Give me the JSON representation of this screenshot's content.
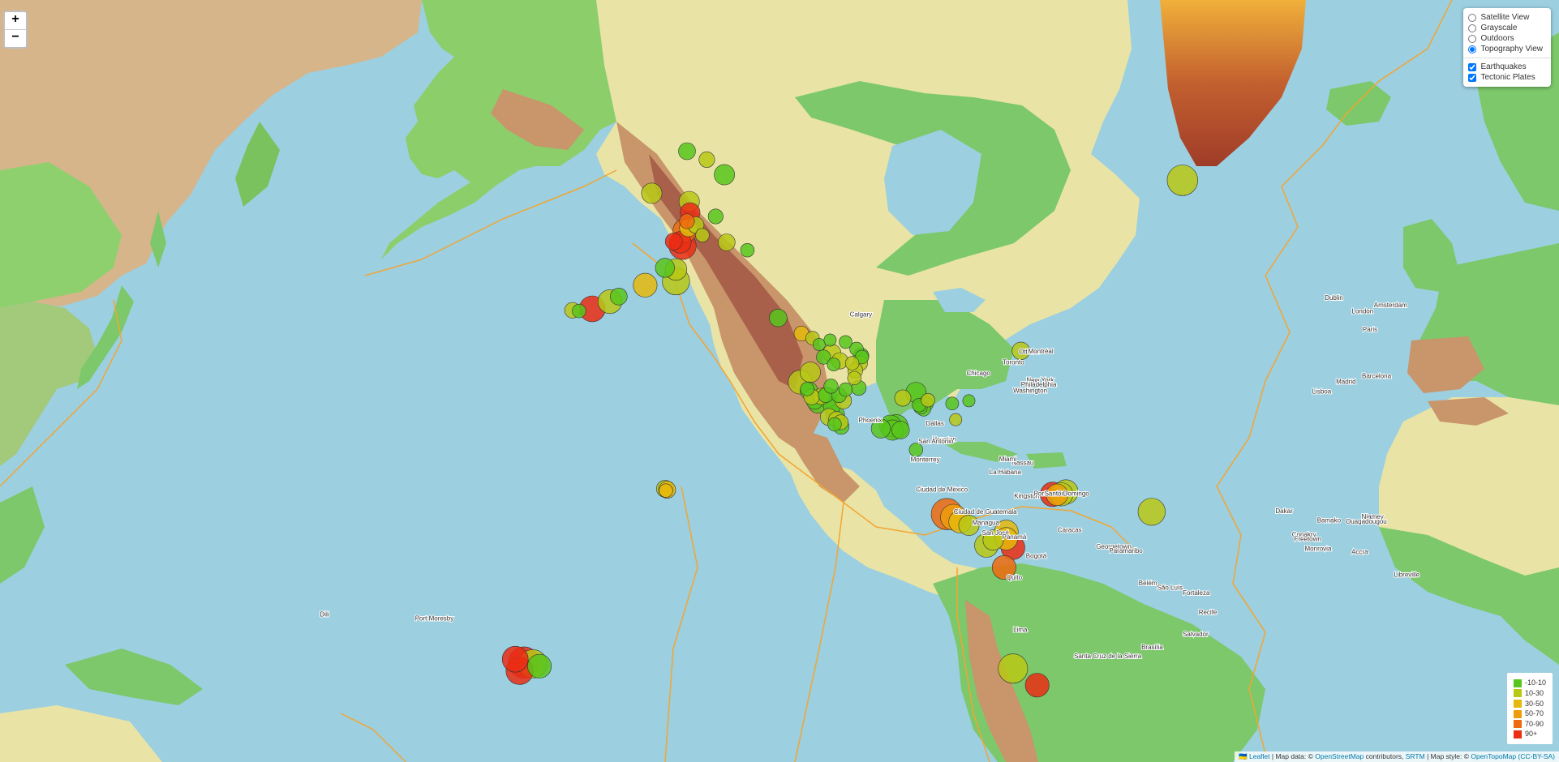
{
  "zoom": {
    "in_label": "+",
    "out_label": "−"
  },
  "layer_control": {
    "base_layers": [
      {
        "label": "Satellite View",
        "selected": false
      },
      {
        "label": "Grayscale",
        "selected": false
      },
      {
        "label": "Outdoors",
        "selected": false
      },
      {
        "label": "Topography View",
        "selected": true
      }
    ],
    "overlays": [
      {
        "label": "Earthquakes",
        "checked": true
      },
      {
        "label": "Tectonic Plates",
        "checked": true
      }
    ]
  },
  "legend": [
    {
      "label": "-10-10",
      "color": "#58c51c"
    },
    {
      "label": "10-30",
      "color": "#b9c815"
    },
    {
      "label": "30-50",
      "color": "#e5b80c"
    },
    {
      "label": "50-70",
      "color": "#ee9c0a"
    },
    {
      "label": "70-90",
      "color": "#ef6a0e"
    },
    {
      "label": "90+",
      "color": "#ea2d14"
    }
  ],
  "attribution": {
    "flag": "🇺🇦",
    "leaflet": "Leaflet",
    "sep1": " | Map data: © ",
    "osm": "OpenStreetMap",
    "sep2": " contributors, ",
    "srtm": "SRTM",
    "sep3": " | Map style: © ",
    "otm": "OpenTopoMap",
    "ccbysa": "(CC-BY-SA)"
  },
  "colors": {
    "ocean": "#9ccfe0",
    "lowland": "#7cc86a",
    "plain": "#e9e4a6",
    "highland": "#c9956b",
    "mountain": "#a8604a",
    "ice": "#b94b2c",
    "plate_boundary": "#f2a532"
  },
  "place_labels": [
    "Calgary",
    "Ottawa",
    "Montréal",
    "Toronto",
    "Chicago",
    "New York",
    "Philadelphia",
    "Washington",
    "Phoenix",
    "Dallas",
    "Houston",
    "San Antonio",
    "Monterrey",
    "Ciudad de México",
    "Ciudad de Guatemala",
    "Managua",
    "San José",
    "Panamá",
    "Bogotá",
    "Caracas",
    "Georgetown",
    "Paramaribo",
    "Kingston",
    "Port-au-Prince",
    "Santo Domingo",
    "Nassau",
    "La Habana",
    "Miami",
    "Quito",
    "Lima",
    "Dublin",
    "London",
    "Amsterdam",
    "Paris",
    "Madrid",
    "Barcelona",
    "Lisboa",
    "Dakar",
    "Bamako",
    "Niamey",
    "Ouagadougou",
    "Conakry",
    "Freetown",
    "Monrovia",
    "Accra",
    "Libreville",
    "Port Moresby",
    "Dili",
    "Santa Cruz de la Sierra",
    "Brasília",
    "Salvador",
    "Fortaleza",
    "Recife",
    "São Luís",
    "Belém"
  ],
  "earthquakes": [
    {
      "lon": -150.0,
      "lat": 64.5,
      "mag": 3.0,
      "depth": 15
    },
    {
      "lon": -149.8,
      "lat": 63.4,
      "mag": 2.9,
      "depth": 95
    },
    {
      "lon": -150.5,
      "lat": 62.5,
      "mag": 2.2,
      "depth": 72
    },
    {
      "lon": -151.0,
      "lat": 61.5,
      "mag": 3.5,
      "depth": 88
    },
    {
      "lon": -152.0,
      "lat": 60.2,
      "mag": 3.2,
      "depth": 110
    },
    {
      "lon": -151.5,
      "lat": 59.8,
      "mag": 4.0,
      "depth": 100
    },
    {
      "lon": -150.2,
      "lat": 61.8,
      "mag": 2.6,
      "depth": 35
    },
    {
      "lon": -148.5,
      "lat": 62.1,
      "mag": 2.4,
      "depth": 28
    },
    {
      "lon": -147.0,
      "lat": 61.0,
      "mag": 2.0,
      "depth": 12
    },
    {
      "lon": -153.5,
      "lat": 60.3,
      "mag": 2.5,
      "depth": 125
    },
    {
      "lon": -144.0,
      "lat": 63.0,
      "mag": 2.2,
      "depth": 8
    },
    {
      "lon": -141.5,
      "lat": 60.2,
      "mag": 2.5,
      "depth": 15
    },
    {
      "lon": -142.0,
      "lat": 67.0,
      "mag": 3.0,
      "depth": 5
    },
    {
      "lon": -146.0,
      "lat": 68.3,
      "mag": 2.3,
      "depth": 12
    },
    {
      "lon": -150.5,
      "lat": 69.0,
      "mag": 2.5,
      "depth": 5
    },
    {
      "lon": -158.5,
      "lat": 65.3,
      "mag": 3.0,
      "depth": 22
    },
    {
      "lon": -153.0,
      "lat": 57.0,
      "mag": 3.2,
      "depth": 25
    },
    {
      "lon": -155.5,
      "lat": 57.2,
      "mag": 2.8,
      "depth": 8
    },
    {
      "lon": -153.0,
      "lat": 55.5,
      "mag": 4.0,
      "depth": 20
    },
    {
      "lon": -160.0,
      "lat": 55.0,
      "mag": 3.5,
      "depth": 30
    },
    {
      "lon": -166.0,
      "lat": 53.5,
      "mag": 2.5,
      "depth": 8
    },
    {
      "lon": -168.0,
      "lat": 52.8,
      "mag": 3.5,
      "depth": 20
    },
    {
      "lon": -172.0,
      "lat": 51.8,
      "mag": 3.8,
      "depth": 95
    },
    {
      "lon": -175.0,
      "lat": 51.5,
      "mag": 2.0,
      "depth": 5
    },
    {
      "lon": -176.5,
      "lat": 51.6,
      "mag": 2.3,
      "depth": 12
    },
    {
      "lon": -136.8,
      "lat": 59.3,
      "mag": 2.0,
      "depth": 5
    },
    {
      "lon": -129.8,
      "lat": 50.5,
      "mag": 2.6,
      "depth": 8
    },
    {
      "lon": -124.5,
      "lat": 48.2,
      "mag": 2.2,
      "depth": 45
    },
    {
      "lon": -122.0,
      "lat": 47.5,
      "mag": 2.0,
      "depth": 20
    },
    {
      "lon": -120.5,
      "lat": 46.5,
      "mag": 1.8,
      "depth": 8
    },
    {
      "lon": -118.0,
      "lat": 47.2,
      "mag": 1.8,
      "depth": 5
    },
    {
      "lon": -114.5,
      "lat": 46.9,
      "mag": 1.9,
      "depth": 8
    },
    {
      "lon": -112.0,
      "lat": 45.8,
      "mag": 2.0,
      "depth": 5
    },
    {
      "lon": -111.0,
      "lat": 44.7,
      "mag": 2.3,
      "depth": 8
    },
    {
      "lon": -110.8,
      "lat": 44.5,
      "mag": 2.0,
      "depth": 6
    },
    {
      "lon": -111.2,
      "lat": 43.5,
      "mag": 2.2,
      "depth": 14
    },
    {
      "lon": -112.3,
      "lat": 42.3,
      "mag": 2.2,
      "depth": 12
    },
    {
      "lon": -111.5,
      "lat": 39.3,
      "mag": 2.2,
      "depth": 7
    },
    {
      "lon": -117.2,
      "lat": 43.3,
      "mag": 1.9,
      "depth": 6
    },
    {
      "lon": -119.5,
      "lat": 44.5,
      "mag": 2.1,
      "depth": 5
    },
    {
      "lon": -117.6,
      "lat": 45.1,
      "mag": 2.7,
      "depth": 18
    },
    {
      "lon": -115.8,
      "lat": 43.9,
      "mag": 2.4,
      "depth": 10
    },
    {
      "lon": -113.0,
      "lat": 43.5,
      "mag": 2.0,
      "depth": 12
    },
    {
      "lon": -112.5,
      "lat": 41.0,
      "mag": 2.0,
      "depth": 14
    },
    {
      "lon": -122.5,
      "lat": 42.0,
      "mag": 3.0,
      "depth": 22
    },
    {
      "lon": -124.8,
      "lat": 40.3,
      "mag": 3.5,
      "depth": 25
    },
    {
      "lon": -123.2,
      "lat": 39.1,
      "mag": 2.0,
      "depth": 8
    },
    {
      "lon": -122.8,
      "lat": 38.8,
      "mag": 2.6,
      "depth": 4
    },
    {
      "lon": -122.2,
      "lat": 37.7,
      "mag": 2.3,
      "depth": 10
    },
    {
      "lon": -121.5,
      "lat": 37.0,
      "mag": 2.5,
      "depth": 8
    },
    {
      "lon": -120.8,
      "lat": 36.5,
      "mag": 2.8,
      "depth": 6
    },
    {
      "lon": -120.0,
      "lat": 37.8,
      "mag": 2.4,
      "depth": 12
    },
    {
      "lon": -119.0,
      "lat": 38.0,
      "mag": 2.2,
      "depth": 7
    },
    {
      "lon": -118.8,
      "lat": 37.6,
      "mag": 3.0,
      "depth": 5
    },
    {
      "lon": -117.6,
      "lat": 36.0,
      "mag": 2.5,
      "depth": 4
    },
    {
      "lon": -116.8,
      "lat": 34.4,
      "mag": 2.7,
      "depth": 8
    },
    {
      "lon": -116.5,
      "lat": 33.5,
      "mag": 2.4,
      "depth": 12
    },
    {
      "lon": -115.6,
      "lat": 33.0,
      "mag": 2.2,
      "depth": 10
    },
    {
      "lon": -118.3,
      "lat": 34.0,
      "mag": 2.5,
      "depth": 14
    },
    {
      "lon": -117.0,
      "lat": 32.6,
      "mag": 2.0,
      "depth": 6
    },
    {
      "lon": -115.5,
      "lat": 32.2,
      "mag": 2.3,
      "depth": 7
    },
    {
      "lon": -114.5,
      "lat": 39.0,
      "mag": 2.0,
      "depth": 5
    },
    {
      "lon": -116.0,
      "lat": 38.0,
      "mag": 2.2,
      "depth": 8
    },
    {
      "lon": -117.8,
      "lat": 39.6,
      "mag": 2.1,
      "depth": 6
    },
    {
      "lon": -115.0,
      "lat": 37.0,
      "mag": 2.4,
      "depth": 10
    },
    {
      "lon": -106.5,
      "lat": 31.8,
      "mag": 2.8,
      "depth": 5
    },
    {
      "lon": -104.3,
      "lat": 32.3,
      "mag": 3.2,
      "depth": 6
    },
    {
      "lon": -103.8,
      "lat": 31.5,
      "mag": 3.0,
      "depth": 4
    },
    {
      "lon": -103.0,
      "lat": 32.2,
      "mag": 3.5,
      "depth": 5
    },
    {
      "lon": -102.0,
      "lat": 31.5,
      "mag": 2.6,
      "depth": 6
    },
    {
      "lon": -101.5,
      "lat": 37.5,
      "mag": 2.4,
      "depth": 25
    },
    {
      "lon": -98.5,
      "lat": 38.5,
      "mag": 3.0,
      "depth": 5
    },
    {
      "lon": -97.5,
      "lat": 35.8,
      "mag": 2.0,
      "depth": 5
    },
    {
      "lon": -96.8,
      "lat": 35.5,
      "mag": 2.1,
      "depth": 8
    },
    {
      "lon": -97.8,
      "lat": 36.2,
      "mag": 2.0,
      "depth": 6
    },
    {
      "lon": -96.3,
      "lat": 36.4,
      "mag": 2.2,
      "depth": 7
    },
    {
      "lon": -95.8,
      "lat": 37.1,
      "mag": 2.0,
      "depth": 22
    },
    {
      "lon": -90.3,
      "lat": 36.5,
      "mag": 1.9,
      "depth": 6
    },
    {
      "lon": -86.5,
      "lat": 37.0,
      "mag": 1.8,
      "depth": 5
    },
    {
      "lon": -89.5,
      "lat": 33.5,
      "mag": 1.8,
      "depth": 12
    },
    {
      "lon": -74.7,
      "lat": 45.5,
      "mag": 2.6,
      "depth": 10
    },
    {
      "lon": -98.5,
      "lat": 27.6,
      "mag": 2.0,
      "depth": 8
    },
    {
      "lon": -155.5,
      "lat": 19.5,
      "mag": 2.5,
      "depth": 28
    },
    {
      "lon": -155.0,
      "lat": 19.3,
      "mag": 2.5,
      "depth": 30
    },
    {
      "lon": -155.3,
      "lat": 19.1,
      "mag": 2.0,
      "depth": 35
    },
    {
      "lon": -38.0,
      "lat": 66.5,
      "mag": 4.5,
      "depth": 25
    },
    {
      "lon": -91.5,
      "lat": 14.0,
      "mag": 4.6,
      "depth": 75
    },
    {
      "lon": -90.0,
      "lat": 13.3,
      "mag": 3.8,
      "depth": 55
    },
    {
      "lon": -88.5,
      "lat": 12.3,
      "mag": 3.3,
      "depth": 40
    },
    {
      "lon": -86.5,
      "lat": 11.5,
      "mag": 3.0,
      "depth": 25
    },
    {
      "lon": -82.5,
      "lat": 7.0,
      "mag": 3.5,
      "depth": 20
    },
    {
      "lon": -81.0,
      "lat": 8.2,
      "mag": 3.0,
      "depth": 28
    },
    {
      "lon": -78.0,
      "lat": 10.0,
      "mag": 3.5,
      "depth": 35
    },
    {
      "lon": -78.0,
      "lat": 8.5,
      "mag": 3.3,
      "depth": 30
    },
    {
      "lon": -76.5,
      "lat": 6.5,
      "mag": 3.5,
      "depth": 95
    },
    {
      "lon": -78.5,
      "lat": 2.0,
      "mag": 3.5,
      "depth": 85
    },
    {
      "lon": -67.5,
      "lat": 18.3,
      "mag": 3.6,
      "depth": 100
    },
    {
      "lon": -66.5,
      "lat": 18.2,
      "mag": 3.2,
      "depth": 62
    },
    {
      "lon": -65.5,
      "lat": 18.3,
      "mag": 3.4,
      "depth": 28
    },
    {
      "lon": -64.5,
      "lat": 18.8,
      "mag": 3.6,
      "depth": 25
    },
    {
      "lon": -45.0,
      "lat": 14.5,
      "mag": 4.0,
      "depth": 25
    },
    {
      "lon": -76.5,
      "lat": -20.5,
      "mag": 4.3,
      "depth": 25
    },
    {
      "lon": -71.0,
      "lat": -24.0,
      "mag": 3.5,
      "depth": 105
    },
    {
      "lon": 170.5,
      "lat": -18.5,
      "mag": 3.8,
      "depth": 115
    },
    {
      "lon": 172.5,
      "lat": -19.2,
      "mag": 4.6,
      "depth": 95
    },
    {
      "lon": 174.5,
      "lat": -19.5,
      "mag": 4.2,
      "depth": 25
    },
    {
      "lon": 176.0,
      "lat": -20.0,
      "mag": 3.5,
      "depth": 8
    },
    {
      "lon": 171.5,
      "lat": -21.0,
      "mag": 4.0,
      "depth": 130
    }
  ]
}
